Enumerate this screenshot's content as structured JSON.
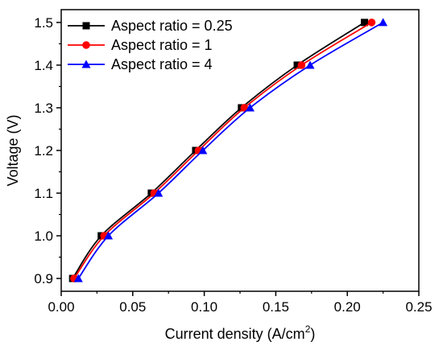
{
  "chart_data": {
    "type": "line",
    "title": "",
    "xlabel": "Current density (A/cm",
    "xlabel_sup": "2",
    "xlabel_close": ")",
    "ylabel": "Voltage (V)",
    "xlim": [
      0.0,
      0.25
    ],
    "ylim": [
      0.87,
      1.53
    ],
    "xticks": [
      "0.00",
      "0.05",
      "0.10",
      "0.15",
      "0.20",
      "0.25"
    ],
    "xtick_values": [
      0.0,
      0.05,
      0.1,
      0.15,
      0.2,
      0.25
    ],
    "yticks": [
      "0.9",
      "1.0",
      "1.1",
      "1.2",
      "1.3",
      "1.4",
      "1.5"
    ],
    "ytick_values": [
      0.9,
      1.0,
      1.1,
      1.2,
      1.3,
      1.4,
      1.5
    ],
    "grid": false,
    "legend_position": "top-left",
    "y": [
      0.9,
      1.0,
      1.1,
      1.2,
      1.3,
      1.4,
      1.5
    ],
    "series": [
      {
        "name": "Aspect ratio = 0.25",
        "color": "#000000",
        "marker": "square",
        "x": [
          0.008,
          0.028,
          0.063,
          0.094,
          0.126,
          0.165,
          0.212
        ]
      },
      {
        "name": "Aspect ratio = 1",
        "color": "#ff0000",
        "marker": "circle",
        "x": [
          0.009,
          0.03,
          0.065,
          0.096,
          0.128,
          0.168,
          0.217
        ]
      },
      {
        "name": "Aspect ratio = 4",
        "color": "#0000ff",
        "marker": "triangle",
        "x": [
          0.012,
          0.033,
          0.068,
          0.099,
          0.132,
          0.174,
          0.225
        ]
      }
    ]
  }
}
